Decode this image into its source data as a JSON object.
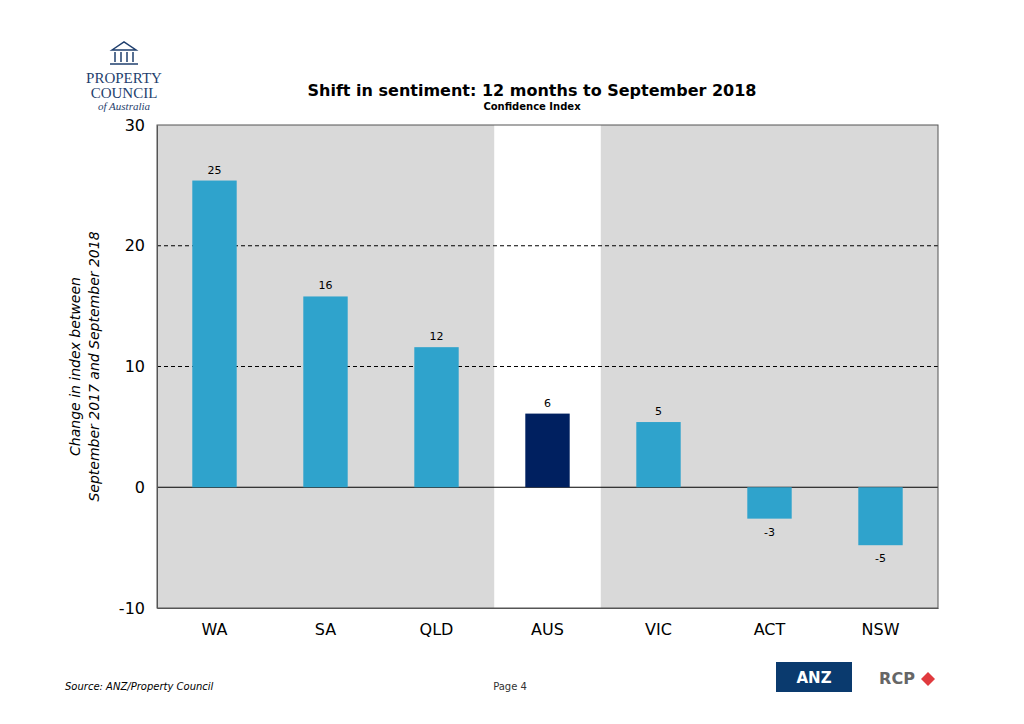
{
  "chart_data": {
    "type": "bar",
    "title": "Shift in sentiment: 12 months to September 2018",
    "subtitle": "Confidence Index",
    "ylabel": [
      "Change in index between",
      "September 2017 and September 2018"
    ],
    "categories": [
      "WA",
      "SA",
      "QLD",
      "AUS",
      "VIC",
      "ACT",
      "NSW"
    ],
    "values": [
      25.4,
      15.8,
      11.6,
      6.1,
      5.4,
      -2.6,
      -4.8
    ],
    "value_labels": [
      "25",
      "16",
      "12",
      "6",
      "5",
      "-3",
      "-5"
    ],
    "colors": [
      "#2fa3cc",
      "#2fa3cc",
      "#2fa3cc",
      "#002060",
      "#2fa3cc",
      "#2fa3cc",
      "#2fa3cc"
    ],
    "ylim": [
      -10,
      30
    ],
    "yticks": [
      -10,
      0,
      10,
      20,
      30
    ],
    "grid": true,
    "data_labels": true,
    "annotations": [
      "PROPERTY",
      "COUNCIL",
      "of Australia",
      "Source: ANZ/Property Council",
      "Page 4",
      "ANZ",
      "RCP"
    ]
  }
}
